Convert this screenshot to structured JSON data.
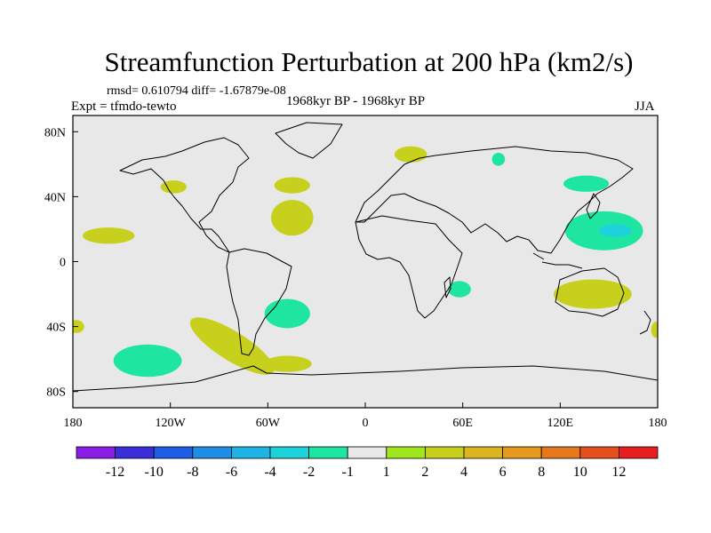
{
  "chart_data": {
    "type": "heatmap",
    "title": "Streamfunction Perturbation at 200 hPa (km2/s)",
    "stats_label": "rmsd= 0.610794 diff= -1.67879e-08",
    "left_label": "Expt = tfmdo-tewto",
    "center_label": "1968kyr BP - 1968kyr BP",
    "right_label": "JJA",
    "x_ticks": [
      {
        "lon": -180,
        "label": "180"
      },
      {
        "lon": -120,
        "label": "120W"
      },
      {
        "lon": -60,
        "label": "60W"
      },
      {
        "lon": 0,
        "label": "0"
      },
      {
        "lon": 60,
        "label": "60E"
      },
      {
        "lon": 120,
        "label": "120E"
      },
      {
        "lon": 180,
        "label": "180"
      }
    ],
    "y_ticks": [
      {
        "lat": 80,
        "label": "80N"
      },
      {
        "lat": 40,
        "label": "40N"
      },
      {
        "lat": 0,
        "label": "0"
      },
      {
        "lat": -40,
        "label": "40S"
      },
      {
        "lat": -80,
        "label": "80S"
      }
    ],
    "xlim": [
      -180,
      180
    ],
    "ylim": [
      -90,
      90
    ],
    "colorbar": {
      "colors": [
        "#8a1ee6",
        "#3a2ed8",
        "#1e5ee6",
        "#1e8ee6",
        "#1eb4e6",
        "#1ed2dc",
        "#1ee6a0",
        "#e8e8e8",
        "#a0e61e",
        "#c8d01e",
        "#dcb41e",
        "#e69a1e",
        "#e6781e",
        "#e6501e",
        "#e61e1e"
      ],
      "labels": [
        "-12",
        "-10",
        "-8",
        "-6",
        "-4",
        "-2",
        "-1",
        "1",
        "2",
        "4",
        "6",
        "8",
        "10",
        "12"
      ]
    },
    "anomalies": [
      {
        "lon": -118,
        "lat": 46,
        "rx": 8,
        "ry": 4,
        "level": "2"
      },
      {
        "lon": -158,
        "lat": 16,
        "rx": 16,
        "ry": 5,
        "level": "2"
      },
      {
        "lon": -45,
        "lat": 47,
        "rx": 11,
        "ry": 5,
        "level": "2"
      },
      {
        "lon": -45,
        "lat": 27,
        "rx": 13,
        "ry": 11,
        "level": "2"
      },
      {
        "lon": 28,
        "lat": 66,
        "rx": 10,
        "ry": 5,
        "level": "2"
      },
      {
        "lon": 82,
        "lat": 63,
        "rx": 4,
        "ry": 4,
        "level": "-1"
      },
      {
        "lon": 136,
        "lat": 48,
        "rx": 14,
        "ry": 5,
        "level": "-1"
      },
      {
        "lon": 147,
        "lat": 19,
        "rx": 24,
        "ry": 12,
        "level": "-1"
      },
      {
        "lon": 154,
        "lat": 19,
        "rx": 10,
        "ry": 4,
        "level": "-2"
      },
      {
        "lon": 140,
        "lat": -20,
        "rx": 24,
        "ry": 9,
        "level": "2"
      },
      {
        "lon": 58,
        "lat": -17,
        "rx": 7,
        "ry": 5,
        "level": "-1"
      },
      {
        "lon": -48,
        "lat": -32,
        "rx": 14,
        "ry": 9,
        "level": "-1"
      },
      {
        "lon": -82,
        "lat": -52,
        "rx": 30,
        "ry": 9,
        "rot": 32,
        "level": "2"
      },
      {
        "lon": -48,
        "lat": -63,
        "rx": 15,
        "ry": 5,
        "level": "2"
      },
      {
        "lon": -134,
        "lat": -61,
        "rx": 21,
        "ry": 10,
        "level": "-1"
      },
      {
        "lon": -178,
        "lat": -40,
        "rx": 5,
        "ry": 4,
        "level": "2"
      },
      {
        "lon": 179,
        "lat": -42,
        "rx": 3,
        "ry": 5,
        "level": "2"
      }
    ]
  }
}
